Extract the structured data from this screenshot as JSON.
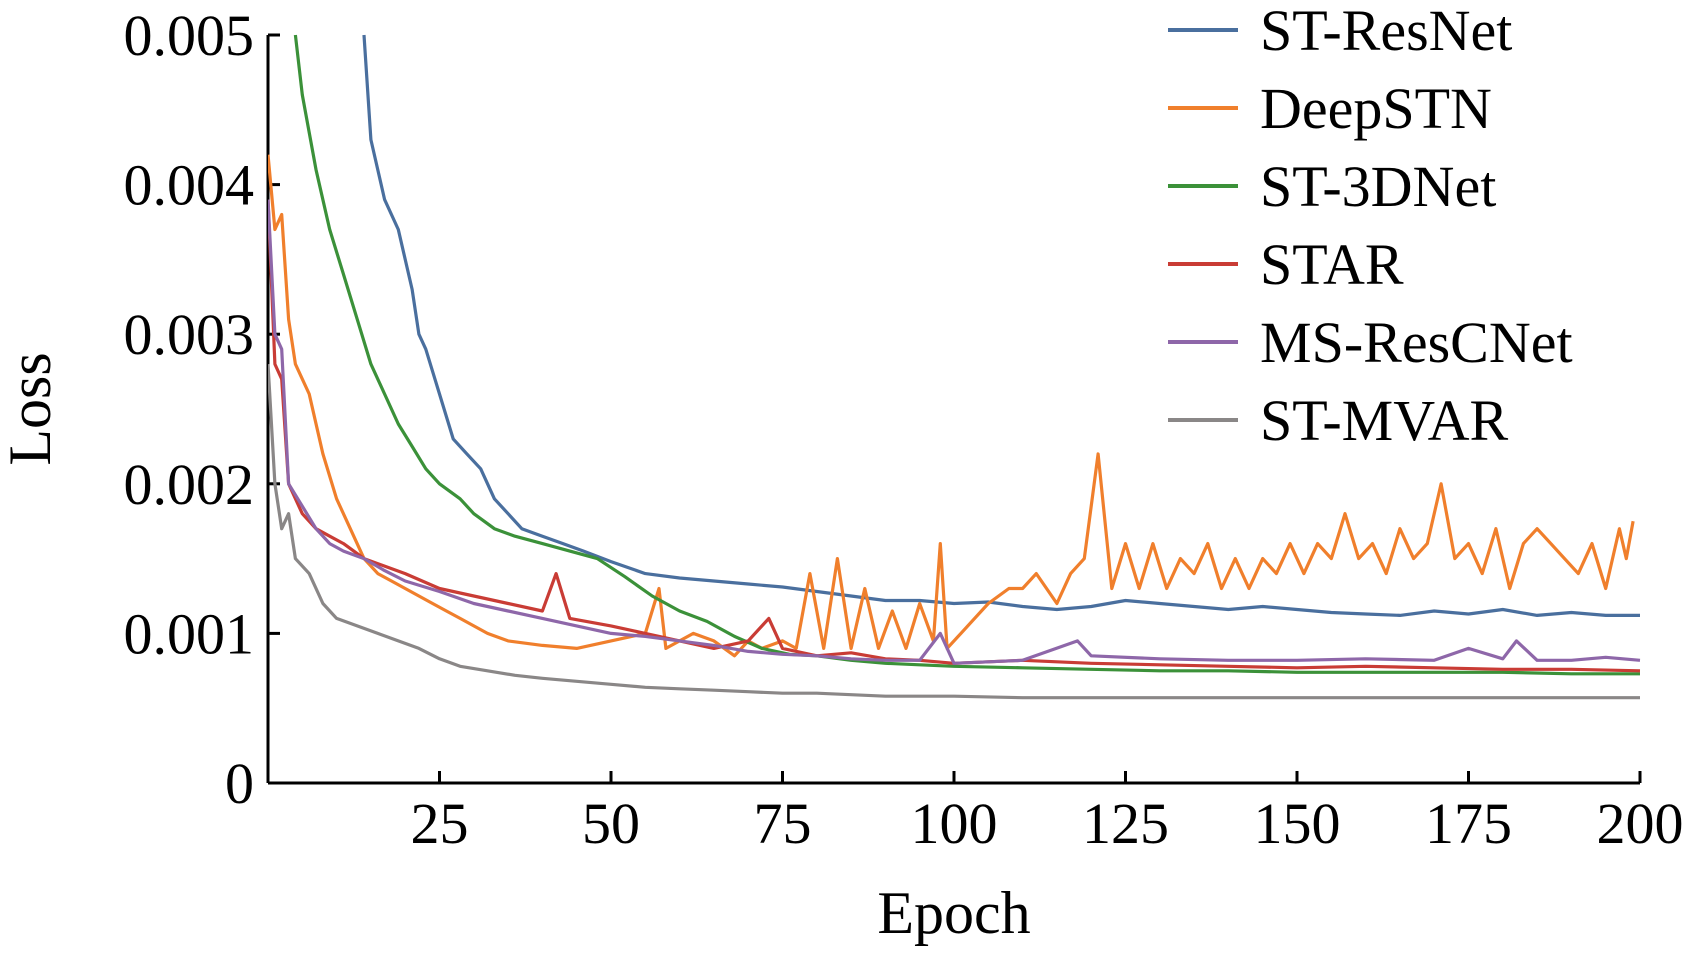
{
  "chart_data": {
    "type": "line",
    "title": "",
    "xlabel": "Epoch",
    "ylabel": "Loss",
    "xlim": [
      0,
      200
    ],
    "ylim": [
      0,
      0.005
    ],
    "x_ticks": [
      25,
      50,
      75,
      100,
      125,
      150,
      175,
      200
    ],
    "x_tick_labels": [
      "25",
      "50",
      "75",
      "100",
      "125",
      "150",
      "175",
      "200"
    ],
    "y_ticks": [
      0,
      0.001,
      0.002,
      0.003,
      0.004,
      0.005
    ],
    "y_tick_labels": [
      "0",
      "0.001",
      "0.002",
      "0.003",
      "0.004",
      "0.005"
    ],
    "grid": false,
    "legend_position": "top-right",
    "series": [
      {
        "name": "ST-ResNet",
        "color": "#4a6f9e",
        "points": [
          [
            14,
            0.005
          ],
          [
            15,
            0.0043
          ],
          [
            17,
            0.0039
          ],
          [
            19,
            0.0037
          ],
          [
            21,
            0.0033
          ],
          [
            22,
            0.003
          ],
          [
            23,
            0.0029
          ],
          [
            25,
            0.0026
          ],
          [
            27,
            0.0023
          ],
          [
            29,
            0.0022
          ],
          [
            31,
            0.0021
          ],
          [
            33,
            0.0019
          ],
          [
            35,
            0.0018
          ],
          [
            37,
            0.0017
          ],
          [
            40,
            0.00165
          ],
          [
            43,
            0.0016
          ],
          [
            46,
            0.00155
          ],
          [
            50,
            0.00148
          ],
          [
            55,
            0.0014
          ],
          [
            60,
            0.00137
          ],
          [
            65,
            0.00135
          ],
          [
            70,
            0.00133
          ],
          [
            75,
            0.00131
          ],
          [
            80,
            0.00128
          ],
          [
            85,
            0.00125
          ],
          [
            90,
            0.00122
          ],
          [
            95,
            0.00122
          ],
          [
            100,
            0.0012
          ],
          [
            105,
            0.00121
          ],
          [
            110,
            0.00118
          ],
          [
            115,
            0.00116
          ],
          [
            120,
            0.00118
          ],
          [
            125,
            0.00122
          ],
          [
            130,
            0.0012
          ],
          [
            135,
            0.00118
          ],
          [
            140,
            0.00116
          ],
          [
            145,
            0.00118
          ],
          [
            150,
            0.00116
          ],
          [
            155,
            0.00114
          ],
          [
            160,
            0.00113
          ],
          [
            165,
            0.00112
          ],
          [
            170,
            0.00115
          ],
          [
            175,
            0.00113
          ],
          [
            180,
            0.00116
          ],
          [
            185,
            0.00112
          ],
          [
            190,
            0.00114
          ],
          [
            195,
            0.00112
          ],
          [
            200,
            0.00112
          ]
        ]
      },
      {
        "name": "DeepSTN",
        "color": "#f07f2c",
        "points": [
          [
            0,
            0.0042
          ],
          [
            1,
            0.0037
          ],
          [
            2,
            0.0038
          ],
          [
            3,
            0.0031
          ],
          [
            4,
            0.0028
          ],
          [
            6,
            0.0026
          ],
          [
            8,
            0.0022
          ],
          [
            10,
            0.0019
          ],
          [
            12,
            0.0017
          ],
          [
            14,
            0.0015
          ],
          [
            16,
            0.0014
          ],
          [
            18,
            0.00135
          ],
          [
            20,
            0.0013
          ],
          [
            22,
            0.00125
          ],
          [
            24,
            0.0012
          ],
          [
            26,
            0.00115
          ],
          [
            28,
            0.0011
          ],
          [
            30,
            0.00105
          ],
          [
            32,
            0.001
          ],
          [
            35,
            0.00095
          ],
          [
            40,
            0.00092
          ],
          [
            45,
            0.0009
          ],
          [
            50,
            0.00095
          ],
          [
            55,
            0.001
          ],
          [
            57,
            0.0013
          ],
          [
            58,
            0.0009
          ],
          [
            60,
            0.00095
          ],
          [
            62,
            0.001
          ],
          [
            65,
            0.00095
          ],
          [
            68,
            0.00085
          ],
          [
            70,
            0.00095
          ],
          [
            72,
            0.0009
          ],
          [
            75,
            0.00095
          ],
          [
            77,
            0.0009
          ],
          [
            79,
            0.0014
          ],
          [
            81,
            0.0009
          ],
          [
            83,
            0.0015
          ],
          [
            85,
            0.0009
          ],
          [
            87,
            0.0013
          ],
          [
            89,
            0.0009
          ],
          [
            91,
            0.00115
          ],
          [
            93,
            0.0009
          ],
          [
            95,
            0.0012
          ],
          [
            97,
            0.00095
          ],
          [
            98,
            0.0016
          ],
          [
            99,
            0.0009
          ],
          [
            101,
            0.001
          ],
          [
            103,
            0.0011
          ],
          [
            105,
            0.0012
          ],
          [
            108,
            0.0013
          ],
          [
            110,
            0.0013
          ],
          [
            112,
            0.0014
          ],
          [
            115,
            0.0012
          ],
          [
            117,
            0.0014
          ],
          [
            119,
            0.0015
          ],
          [
            121,
            0.0022
          ],
          [
            123,
            0.0013
          ],
          [
            125,
            0.0016
          ],
          [
            127,
            0.0013
          ],
          [
            129,
            0.0016
          ],
          [
            131,
            0.0013
          ],
          [
            133,
            0.0015
          ],
          [
            135,
            0.0014
          ],
          [
            137,
            0.0016
          ],
          [
            139,
            0.0013
          ],
          [
            141,
            0.0015
          ],
          [
            143,
            0.0013
          ],
          [
            145,
            0.0015
          ],
          [
            147,
            0.0014
          ],
          [
            149,
            0.0016
          ],
          [
            151,
            0.0014
          ],
          [
            153,
            0.0016
          ],
          [
            155,
            0.0015
          ],
          [
            157,
            0.0018
          ],
          [
            159,
            0.0015
          ],
          [
            161,
            0.0016
          ],
          [
            163,
            0.0014
          ],
          [
            165,
            0.0017
          ],
          [
            167,
            0.0015
          ],
          [
            169,
            0.0016
          ],
          [
            171,
            0.002
          ],
          [
            173,
            0.0015
          ],
          [
            175,
            0.0016
          ],
          [
            177,
            0.0014
          ],
          [
            179,
            0.0017
          ],
          [
            181,
            0.0013
          ],
          [
            183,
            0.0016
          ],
          [
            185,
            0.0017
          ],
          [
            187,
            0.0016
          ],
          [
            189,
            0.0015
          ],
          [
            191,
            0.0014
          ],
          [
            193,
            0.0016
          ],
          [
            195,
            0.0013
          ],
          [
            197,
            0.0017
          ],
          [
            198,
            0.0015
          ],
          [
            199,
            0.00175
          ]
        ]
      },
      {
        "name": "ST-3DNet",
        "color": "#3b9139",
        "points": [
          [
            4,
            0.005
          ],
          [
            5,
            0.0046
          ],
          [
            7,
            0.0041
          ],
          [
            9,
            0.0037
          ],
          [
            11,
            0.0034
          ],
          [
            13,
            0.0031
          ],
          [
            15,
            0.0028
          ],
          [
            17,
            0.0026
          ],
          [
            19,
            0.0024
          ],
          [
            21,
            0.00225
          ],
          [
            23,
            0.0021
          ],
          [
            25,
            0.002
          ],
          [
            28,
            0.0019
          ],
          [
            30,
            0.0018
          ],
          [
            33,
            0.0017
          ],
          [
            36,
            0.00165
          ],
          [
            40,
            0.0016
          ],
          [
            44,
            0.00155
          ],
          [
            48,
            0.0015
          ],
          [
            52,
            0.00138
          ],
          [
            56,
            0.00125
          ],
          [
            60,
            0.00115
          ],
          [
            64,
            0.00108
          ],
          [
            68,
            0.00098
          ],
          [
            72,
            0.0009
          ],
          [
            76,
            0.00086
          ],
          [
            80,
            0.00085
          ],
          [
            85,
            0.00082
          ],
          [
            90,
            0.0008
          ],
          [
            95,
            0.00079
          ],
          [
            100,
            0.00078
          ],
          [
            110,
            0.00077
          ],
          [
            120,
            0.00076
          ],
          [
            130,
            0.00075
          ],
          [
            140,
            0.00075
          ],
          [
            150,
            0.00074
          ],
          [
            160,
            0.00074
          ],
          [
            170,
            0.00074
          ],
          [
            180,
            0.00074
          ],
          [
            190,
            0.00073
          ],
          [
            200,
            0.00073
          ]
        ]
      },
      {
        "name": "STAR",
        "color": "#c93c35",
        "points": [
          [
            0,
            0.0039
          ],
          [
            1,
            0.0028
          ],
          [
            2,
            0.0027
          ],
          [
            3,
            0.002
          ],
          [
            5,
            0.0018
          ],
          [
            7,
            0.0017
          ],
          [
            9,
            0.00165
          ],
          [
            11,
            0.0016
          ],
          [
            14,
            0.0015
          ],
          [
            17,
            0.00145
          ],
          [
            20,
            0.0014
          ],
          [
            25,
            0.0013
          ],
          [
            30,
            0.00125
          ],
          [
            35,
            0.0012
          ],
          [
            40,
            0.00115
          ],
          [
            42,
            0.0014
          ],
          [
            44,
            0.0011
          ],
          [
            50,
            0.00105
          ],
          [
            55,
            0.001
          ],
          [
            60,
            0.00095
          ],
          [
            65,
            0.0009
          ],
          [
            70,
            0.00095
          ],
          [
            73,
            0.0011
          ],
          [
            75,
            0.0009
          ],
          [
            80,
            0.00085
          ],
          [
            85,
            0.00087
          ],
          [
            90,
            0.00083
          ],
          [
            95,
            0.00082
          ],
          [
            100,
            0.0008
          ],
          [
            110,
            0.00082
          ],
          [
            120,
            0.0008
          ],
          [
            130,
            0.00079
          ],
          [
            140,
            0.00078
          ],
          [
            150,
            0.00077
          ],
          [
            160,
            0.00078
          ],
          [
            170,
            0.00077
          ],
          [
            180,
            0.00076
          ],
          [
            190,
            0.00076
          ],
          [
            200,
            0.00075
          ]
        ]
      },
      {
        "name": "MS-ResCNet",
        "color": "#8e67a9",
        "points": [
          [
            0,
            0.0039
          ],
          [
            1,
            0.003
          ],
          [
            2,
            0.0029
          ],
          [
            3,
            0.002
          ],
          [
            5,
            0.00185
          ],
          [
            7,
            0.0017
          ],
          [
            9,
            0.0016
          ],
          [
            11,
            0.00155
          ],
          [
            14,
            0.0015
          ],
          [
            17,
            0.00142
          ],
          [
            20,
            0.00135
          ],
          [
            25,
            0.00128
          ],
          [
            30,
            0.0012
          ],
          [
            35,
            0.00115
          ],
          [
            40,
            0.0011
          ],
          [
            45,
            0.00105
          ],
          [
            50,
            0.001
          ],
          [
            55,
            0.00098
          ],
          [
            60,
            0.00095
          ],
          [
            65,
            0.00092
          ],
          [
            70,
            0.00088
          ],
          [
            75,
            0.00086
          ],
          [
            80,
            0.00085
          ],
          [
            85,
            0.00083
          ],
          [
            90,
            0.00082
          ],
          [
            95,
            0.00082
          ],
          [
            98,
            0.001
          ],
          [
            100,
            0.0008
          ],
          [
            110,
            0.00082
          ],
          [
            118,
            0.00095
          ],
          [
            120,
            0.00085
          ],
          [
            130,
            0.00083
          ],
          [
            140,
            0.00082
          ],
          [
            150,
            0.00082
          ],
          [
            160,
            0.00083
          ],
          [
            170,
            0.00082
          ],
          [
            175,
            0.0009
          ],
          [
            180,
            0.00083
          ],
          [
            182,
            0.00095
          ],
          [
            185,
            0.00082
          ],
          [
            190,
            0.00082
          ],
          [
            195,
            0.00084
          ],
          [
            200,
            0.00082
          ]
        ]
      },
      {
        "name": "ST-MVAR",
        "color": "#8a8787",
        "points": [
          [
            0,
            0.0028
          ],
          [
            1,
            0.002
          ],
          [
            2,
            0.0017
          ],
          [
            3,
            0.0018
          ],
          [
            4,
            0.0015
          ],
          [
            6,
            0.0014
          ],
          [
            8,
            0.0012
          ],
          [
            10,
            0.0011
          ],
          [
            13,
            0.00105
          ],
          [
            16,
            0.001
          ],
          [
            19,
            0.00095
          ],
          [
            22,
            0.0009
          ],
          [
            25,
            0.00083
          ],
          [
            28,
            0.00078
          ],
          [
            32,
            0.00075
          ],
          [
            36,
            0.00072
          ],
          [
            40,
            0.0007
          ],
          [
            45,
            0.00068
          ],
          [
            50,
            0.00066
          ],
          [
            55,
            0.00064
          ],
          [
            60,
            0.00063
          ],
          [
            65,
            0.00062
          ],
          [
            70,
            0.00061
          ],
          [
            75,
            0.0006
          ],
          [
            80,
            0.0006
          ],
          [
            85,
            0.00059
          ],
          [
            90,
            0.00058
          ],
          [
            100,
            0.00058
          ],
          [
            110,
            0.00057
          ],
          [
            120,
            0.00057
          ],
          [
            130,
            0.00057
          ],
          [
            140,
            0.00057
          ],
          [
            150,
            0.00057
          ],
          [
            160,
            0.00057
          ],
          [
            170,
            0.00057
          ],
          [
            180,
            0.00057
          ],
          [
            190,
            0.00057
          ],
          [
            200,
            0.00057
          ]
        ]
      }
    ]
  }
}
